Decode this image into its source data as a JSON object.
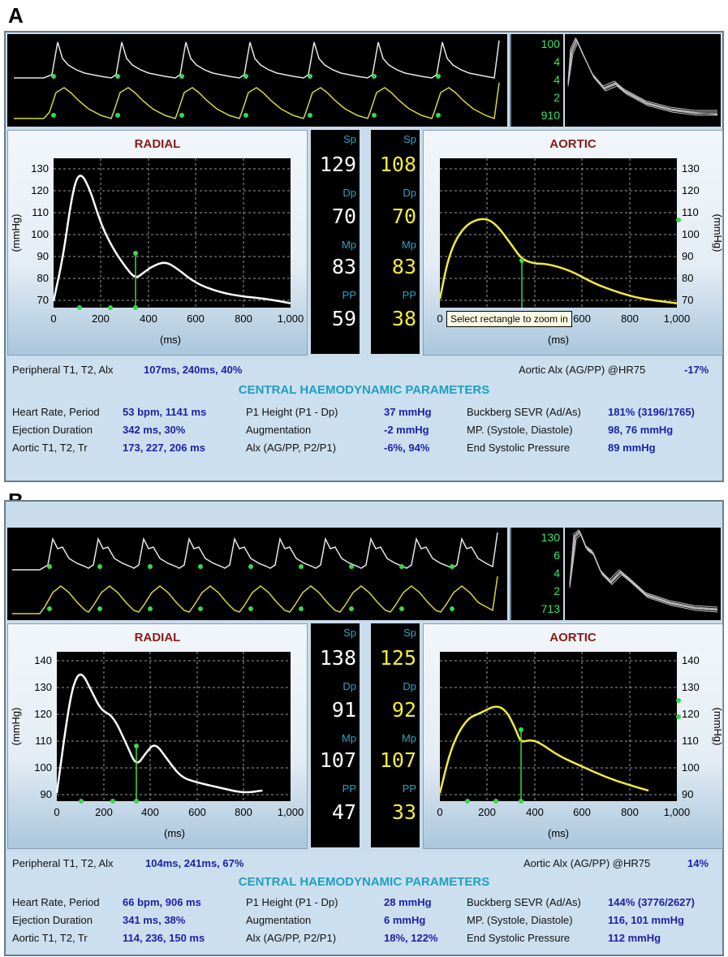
{
  "figures": [
    {
      "letter": "A",
      "overlay_numbers": [
        "100",
        "4",
        "4",
        "2",
        "910"
      ],
      "radial": {
        "title": "RADIAL",
        "ylabel": "(mmHg)",
        "xlabel": "(ms)",
        "yticks": [
          "130",
          "120",
          "110",
          "100",
          "90",
          "80",
          "70"
        ],
        "xticks": [
          "0",
          "200",
          "400",
          "600",
          "800",
          "1,000"
        ]
      },
      "radial_values": {
        "sp_label": "Sp",
        "sp": "129",
        "dp_label": "Dp",
        "dp": "70",
        "mp_label": "Mp",
        "mp": "83",
        "pp_label": "PP",
        "pp": "59"
      },
      "aortic_values": {
        "sp_label": "Sp",
        "sp": "108",
        "dp_label": "Dp",
        "dp": "70",
        "mp_label": "Mp",
        "mp": "83",
        "pp_label": "PP",
        "pp": "38"
      },
      "aortic": {
        "title": "AORTIC",
        "ylabel": "(mmHg)",
        "xlabel": "(ms)",
        "yticks": [
          "130",
          "120",
          "110",
          "100",
          "90",
          "80",
          "70"
        ],
        "xticks": [
          "0",
          "200",
          "400",
          "600",
          "800",
          "1,000"
        ]
      },
      "tooltip": "Select rectangle to zoom in",
      "info": {
        "peripheral_label": "Peripheral T1, T2, Alx",
        "peripheral_value": "107ms, 240ms, 40%",
        "aortic_alx_label": "Aortic Alx  (AG/PP) @HR75",
        "aortic_alx_value": "-17%",
        "section_title": "CENTRAL HAEMODYNAMIC PARAMETERS",
        "col1": [
          {
            "label": "Heart Rate, Period",
            "value": "53 bpm, 1141 ms"
          },
          {
            "label": "Ejection Duration",
            "value": "342 ms, 30%"
          },
          {
            "label": "Aortic T1, T2, Tr",
            "value": "173, 227, 206 ms"
          }
        ],
        "col2": [
          {
            "label": "P1 Height (P1 - Dp)",
            "value": "37 mmHg"
          },
          {
            "label": "Augmentation",
            "value": "-2 mmHg"
          },
          {
            "label": "Alx (AG/PP, P2/P1)",
            "value": "-6%, 94%"
          }
        ],
        "col3": [
          {
            "label": "Buckberg SEVR (Ad/As)",
            "value": "181% (3196/1765)"
          },
          {
            "label": "MP. (Systole, Diastole)",
            "value": "98, 76 mmHg"
          },
          {
            "label": "End Systolic Pressure",
            "value": "89 mmHg"
          }
        ]
      }
    },
    {
      "letter": "B",
      "overlay_numbers": [
        "130",
        "6",
        "4",
        "2",
        "713"
      ],
      "radial": {
        "title": "RADIAL",
        "ylabel": "(mmHg)",
        "xlabel": "(ms)",
        "yticks": [
          "140",
          "130",
          "120",
          "110",
          "100",
          "90"
        ],
        "xticks": [
          "0",
          "200",
          "400",
          "600",
          "800",
          "1,000"
        ]
      },
      "radial_values": {
        "sp_label": "Sp",
        "sp": "138",
        "dp_label": "Dp",
        "dp": "91",
        "mp_label": "Mp",
        "mp": "107",
        "pp_label": "PP",
        "pp": "47"
      },
      "aortic_values": {
        "sp_label": "Sp",
        "sp": "125",
        "dp_label": "Dp",
        "dp": "92",
        "mp_label": "Mp",
        "mp": "107",
        "pp_label": "PP",
        "pp": "33"
      },
      "aortic": {
        "title": "AORTIC",
        "ylabel": "(mmHg)",
        "xlabel": "(ms)",
        "yticks": [
          "140",
          "130",
          "120",
          "110",
          "100",
          "90"
        ],
        "xticks": [
          "0",
          "200",
          "400",
          "600",
          "800",
          "1,000"
        ]
      },
      "info": {
        "peripheral_label": "Peripheral T1, T2, Alx",
        "peripheral_value": "104ms, 241ms, 67%",
        "aortic_alx_label": "Aortic Alx  (AG/PP) @HR75",
        "aortic_alx_value": "14%",
        "section_title": "CENTRAL HAEMODYNAMIC PARAMETERS",
        "col1": [
          {
            "label": "Heart Rate, Period",
            "value": "66 bpm, 906 ms"
          },
          {
            "label": "Ejection Duration",
            "value": "341 ms, 38%"
          },
          {
            "label": "Aortic T1, T2, Tr",
            "value": "114, 236, 150 ms"
          }
        ],
        "col2": [
          {
            "label": "P1 Height (P1 - Dp)",
            "value": "28 mmHg"
          },
          {
            "label": "Augmentation",
            "value": "6 mmHg"
          },
          {
            "label": "Alx (AG/PP, P2/P1)",
            "value": "18%, 122%"
          }
        ],
        "col3": [
          {
            "label": "Buckberg SEVR (Ad/As)",
            "value": "144% (3776/2627)"
          },
          {
            "label": "MP. (Systole, Diastole)",
            "value": "116, 101 mmHg"
          },
          {
            "label": "End Systolic Pressure",
            "value": "112 mmHg"
          }
        ]
      }
    }
  ],
  "colors": {
    "radial_trace": "#ffffff",
    "aortic_trace": "#f2ea3c",
    "marker": "#39d84a",
    "label_cyan": "#2aa5c9",
    "value_blue": "#1a23a8",
    "title_red": "#8a1a1a"
  },
  "chart_data": [
    {
      "type": "line",
      "title": "RADIAL",
      "xlabel": "(ms)",
      "ylabel": "(mmHg)",
      "xlim": [
        0,
        1000
      ],
      "ylim": [
        67,
        135
      ],
      "series": [
        {
          "x": [
            0,
            40,
            80,
            110,
            150,
            200,
            250,
            300,
            345,
            380,
            420,
            470,
            520,
            600,
            700,
            800,
            900,
            1000
          ],
          "y": [
            70,
            90,
            120,
            129,
            122,
            105,
            94,
            86,
            80,
            83,
            86,
            88,
            85,
            78,
            74,
            72,
            71,
            69
          ]
        }
      ]
    },
    {
      "type": "line",
      "title": "AORTIC",
      "xlabel": "(ms)",
      "ylabel": "(mmHg)",
      "xlim": [
        0,
        1000
      ],
      "ylim": [
        67,
        135
      ],
      "series": [
        {
          "x": [
            0,
            40,
            100,
            173,
            230,
            300,
            345,
            400,
            450,
            550,
            650,
            750,
            850,
            1000
          ],
          "y": [
            71,
            92,
            104,
            108,
            106,
            96,
            89,
            87,
            87,
            84,
            78,
            74,
            71,
            69
          ]
        }
      ]
    },
    {
      "type": "line",
      "title": "RADIAL",
      "xlabel": "(ms)",
      "ylabel": "(mmHg)",
      "xlim": [
        0,
        1000
      ],
      "ylim": [
        89,
        145
      ],
      "series": [
        {
          "x": [
            0,
            40,
            70,
            104,
            150,
            190,
            241,
            300,
            340,
            380,
            420,
            470,
            530,
            600,
            700,
            800,
            880
          ],
          "y": [
            92,
            118,
            133,
            138,
            130,
            123,
            121,
            110,
            102,
            107,
            111,
            105,
            98,
            96,
            94,
            92,
            93
          ]
        }
      ]
    },
    {
      "type": "line",
      "title": "AORTIC",
      "xlabel": "(ms)",
      "ylabel": "(mmHg)",
      "xlim": [
        0,
        1000
      ],
      "ylim": [
        89,
        145
      ],
      "series": [
        {
          "x": [
            0,
            50,
            114,
            170,
            236,
            280,
            320,
            341,
            380,
            420,
            500,
            600,
            700,
            800,
            880
          ],
          "y": [
            92,
            110,
            120,
            122,
            125,
            123,
            116,
            111,
            112,
            111,
            106,
            102,
            98,
            95,
            93
          ]
        }
      ]
    }
  ]
}
